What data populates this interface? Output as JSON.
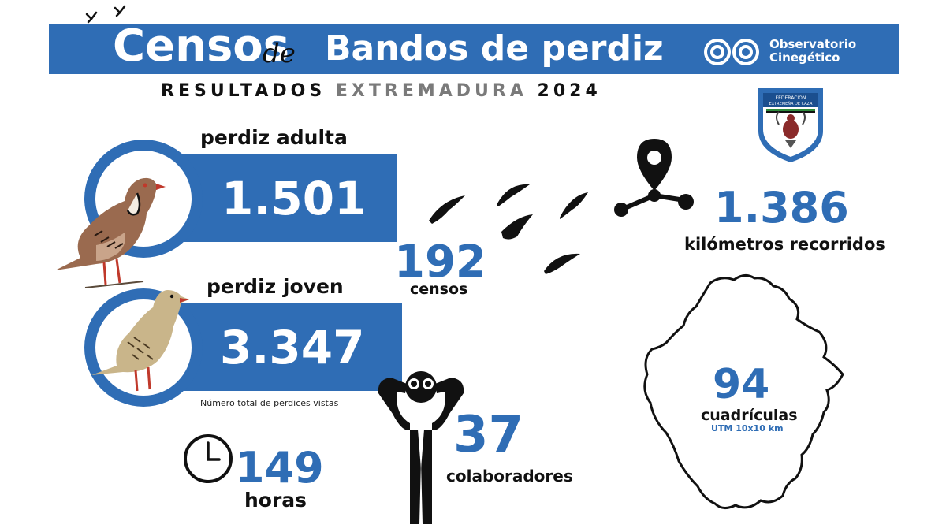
{
  "header": {
    "title_main": "Censos",
    "title_de": "de",
    "title_rest": "Bandos de perdiz",
    "logo_text_line1": "Observatorio",
    "logo_text_line2": "Cinegético",
    "subtitle_a": "RESULTADOS",
    "subtitle_b": "EXTREMADURA",
    "subtitle_c": "2024"
  },
  "federation": {
    "shield_text_line1": "FEDERACIÓN",
    "shield_text_line2": "EXTREMEÑA DE CAZA"
  },
  "adult": {
    "label": "perdiz adulta",
    "value": "1.501"
  },
  "young": {
    "label": "perdiz joven",
    "value": "3.347"
  },
  "total_note": "Número total de perdices vistas",
  "censos": {
    "value": "192",
    "label": "censos"
  },
  "kilometers": {
    "value": "1.386",
    "label": "kilómetros recorridos"
  },
  "hours": {
    "value": "149",
    "label": "horas"
  },
  "collaborators": {
    "value": "37",
    "label": "colaboradores"
  },
  "grids": {
    "value": "94",
    "label": "cuadrículas",
    "sublabel": "UTM 10x10 km"
  },
  "colors": {
    "primary_blue": "#2f6db5",
    "grey_text": "#7a7a7a"
  },
  "icons": [
    "partridge-adult-icon",
    "partridge-young-icon",
    "flying-birds-icon",
    "map-pin-route-icon",
    "clock-icon",
    "person-binoculars-icon",
    "extremadura-map-icon",
    "observatorio-logo-icon",
    "federation-shield-icon"
  ]
}
